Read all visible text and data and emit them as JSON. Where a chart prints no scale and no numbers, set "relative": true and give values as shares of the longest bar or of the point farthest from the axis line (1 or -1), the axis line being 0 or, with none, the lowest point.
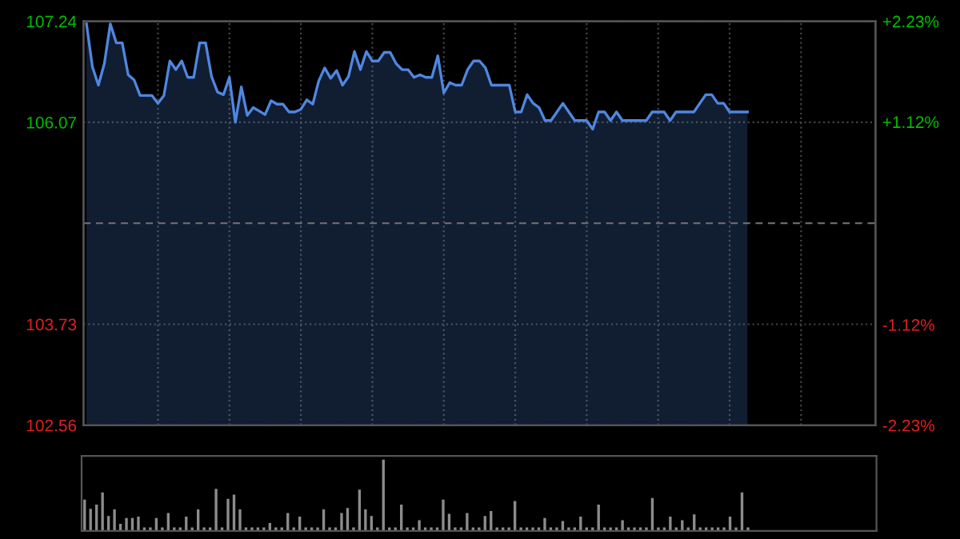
{
  "chart_data": [
    {
      "type": "area",
      "categories": [
        null,
        null,
        null,
        null,
        null,
        null,
        null,
        null,
        null,
        null,
        null,
        null,
        null,
        null,
        null,
        null,
        null,
        null,
        null,
        null,
        null,
        null,
        null,
        null,
        null,
        null,
        null,
        null,
        null,
        null,
        null,
        null,
        null,
        null,
        null,
        null,
        null,
        null,
        null,
        null,
        null,
        null,
        null,
        null,
        null,
        null,
        null,
        null,
        null,
        null,
        null,
        null,
        null,
        null,
        null,
        null,
        null,
        null,
        null,
        null,
        null,
        null,
        null,
        null,
        null,
        null,
        null,
        null,
        null,
        null,
        null,
        null,
        null,
        null,
        null,
        null,
        null,
        null,
        null,
        null,
        null,
        null,
        null,
        null,
        null,
        null,
        null,
        null,
        null,
        null,
        null,
        null,
        null,
        null,
        null,
        null,
        null,
        null,
        null,
        null,
        null,
        null,
        null,
        null,
        null,
        null,
        null,
        null,
        null,
        null,
        null,
        null,
        null,
        null,
        null,
        null,
        null,
        null,
        null,
        null,
        null,
        null,
        null,
        null,
        null,
        null,
        null,
        null,
        null,
        null,
        null,
        null,
        null
      ],
      "ylim": [
        102.56,
        107.24
      ],
      "yticks": [
        102.56,
        103.73,
        106.07,
        107.24
      ],
      "y2lim": [
        -2.23,
        2.23
      ],
      "y2ticks": [
        {
          "value": -2.23,
          "label": "-2.23%"
        },
        {
          "value": -1.12,
          "label": "-1.12%"
        },
        {
          "value": 1.12,
          "label": "+1.12%"
        },
        {
          "value": 2.23,
          "label": "+2.23%"
        }
      ],
      "grid": true,
      "ref_lines": [
        {
          "axis": "y",
          "value": 104.9,
          "label": null,
          "line_style": "dashed",
          "color": "#6a6a6a"
        }
      ],
      "series": [
        {
          "color": "#4f86e0",
          "values": [
            107.21,
            106.71,
            106.5,
            106.75,
            107.21,
            106.99,
            106.99,
            106.62,
            106.56,
            106.38,
            106.38,
            106.38,
            106.29,
            106.38,
            106.78,
            106.68,
            106.78,
            106.59,
            106.59,
            106.99,
            106.99,
            106.6,
            106.42,
            106.39,
            106.59,
            106.07,
            106.48,
            106.15,
            106.24,
            106.2,
            106.16,
            106.32,
            106.28,
            106.28,
            106.19,
            106.19,
            106.22,
            106.33,
            106.28,
            106.55,
            106.7,
            106.58,
            106.67,
            106.5,
            106.6,
            106.89,
            106.68,
            106.89,
            106.78,
            106.78,
            106.88,
            106.88,
            106.75,
            106.68,
            106.68,
            106.59,
            106.62,
            106.59,
            106.59,
            106.84,
            106.41,
            106.53,
            106.5,
            106.5,
            106.68,
            106.78,
            106.78,
            106.7,
            106.5,
            106.5,
            106.5,
            106.5,
            106.19,
            106.19,
            106.39,
            106.29,
            106.24,
            106.09,
            106.09,
            106.19,
            106.29,
            106.19,
            106.09,
            106.09,
            106.09,
            105.99,
            106.19,
            106.19,
            106.09,
            106.19,
            106.09,
            106.09,
            106.09,
            106.09,
            106.09,
            106.19,
            106.19,
            106.19,
            106.09,
            106.19,
            106.19,
            106.19,
            106.19,
            106.29,
            106.39,
            106.39,
            106.29,
            106.29,
            106.19,
            106.19,
            106.19,
            106.19,
            null,
            null,
            null,
            null,
            null,
            null,
            null,
            null,
            null,
            null,
            null,
            null,
            null,
            null,
            null,
            null,
            null,
            null,
            null,
            null,
            null
          ]
        }
      ]
    },
    {
      "type": "bar",
      "relative": true,
      "categories": [
        null,
        null,
        null,
        null,
        null,
        null,
        null,
        null,
        null,
        null,
        null,
        null,
        null,
        null,
        null,
        null,
        null,
        null,
        null,
        null,
        null,
        null,
        null,
        null,
        null,
        null,
        null,
        null,
        null,
        null,
        null,
        null,
        null,
        null,
        null,
        null,
        null,
        null,
        null,
        null,
        null,
        null,
        null,
        null,
        null,
        null,
        null,
        null,
        null,
        null,
        null,
        null,
        null,
        null,
        null,
        null,
        null,
        null,
        null,
        null,
        null,
        null,
        null,
        null,
        null,
        null,
        null,
        null,
        null,
        null,
        null,
        null,
        null,
        null,
        null,
        null,
        null,
        null,
        null,
        null,
        null,
        null,
        null,
        null,
        null,
        null,
        null,
        null,
        null,
        null,
        null,
        null,
        null,
        null,
        null,
        null,
        null,
        null,
        null,
        null,
        null,
        null,
        null,
        null,
        null,
        null,
        null,
        null,
        null,
        null,
        null,
        null,
        null,
        null,
        null,
        null,
        null,
        null,
        null,
        null,
        null,
        null,
        null,
        null,
        null,
        null,
        null,
        null,
        null,
        null,
        null,
        null,
        null
      ],
      "series": [
        {
          "color": "#8c8c8c",
          "values": [
            0.44,
            0.31,
            0.37,
            0.54,
            0.21,
            0.3,
            0.1,
            0.18,
            0.18,
            0.2,
            0.05,
            0.05,
            0.18,
            0.05,
            0.25,
            0.05,
            0.05,
            0.2,
            0.05,
            0.3,
            0.05,
            0.05,
            0.59,
            0.05,
            0.45,
            0.51,
            0.3,
            0.05,
            0.05,
            0.05,
            0.05,
            0.11,
            0.05,
            0.05,
            0.25,
            0.05,
            0.2,
            0.05,
            0.05,
            0.05,
            0.3,
            0.05,
            0.05,
            0.25,
            0.32,
            0.05,
            0.58,
            0.3,
            0.21,
            0.05,
            1,
            0.05,
            0.05,
            0.37,
            0.05,
            0.05,
            0.15,
            0.05,
            0.05,
            0.05,
            0.44,
            0.24,
            0.05,
            0.05,
            0.25,
            0.05,
            0.05,
            0.21,
            0.28,
            0.05,
            0.05,
            0.05,
            0.42,
            0.05,
            0.05,
            0.05,
            0.05,
            0.18,
            0.05,
            0.05,
            0.14,
            0.05,
            0.05,
            0.2,
            0.05,
            0.05,
            0.37,
            0.05,
            0.05,
            0.05,
            0.15,
            0.05,
            0.05,
            0.05,
            0.05,
            0.46,
            0.05,
            0.05,
            0.2,
            0.05,
            0.15,
            0.05,
            0.23,
            0.05,
            0.05,
            0.05,
            0.05,
            0.05,
            0.2,
            0.05,
            0.54,
            0.05,
            0,
            0,
            0,
            0,
            0,
            0,
            0,
            0,
            0,
            0,
            0,
            0,
            0,
            0,
            0,
            0,
            0,
            0,
            0,
            0,
            0
          ]
        }
      ]
    }
  ]
}
